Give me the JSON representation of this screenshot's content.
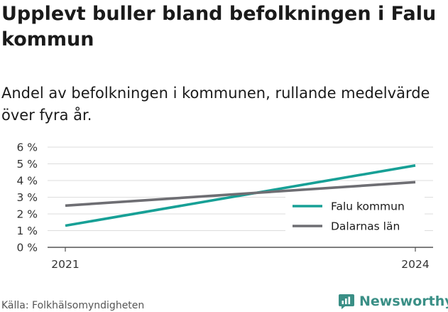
{
  "header": {
    "title": "Upplevt buller bland befolkningen i Falu kommun",
    "subtitle": "Andel av befolkningen i kommunen, rullande medelvärde över fyra år."
  },
  "footer": {
    "source": "Källa: Folkhälsomyndigheten",
    "brand": "Newsworthy"
  },
  "colors": {
    "falu": "#17a096",
    "dalarna": "#6e6e73",
    "grid": "#dddddd",
    "brand": "#3a8f86"
  },
  "icons": {
    "brand_logo": "newsworthy-logo-icon"
  },
  "chart_data": {
    "type": "line",
    "title": "Upplevt buller bland befolkningen i Falu kommun",
    "subtitle": "Andel av befolkningen i kommunen, rullande medelvärde över fyra år.",
    "x": [
      2021,
      2024
    ],
    "x_tick_labels": [
      "2021",
      "2024"
    ],
    "y_ticks": [
      0,
      1,
      2,
      3,
      4,
      5,
      6
    ],
    "y_tick_labels": [
      "0 %",
      "1 %",
      "2 %",
      "3 %",
      "4 %",
      "5 %",
      "6 %"
    ],
    "ylim": [
      0,
      6
    ],
    "xlabel": "",
    "ylabel": "",
    "grid": true,
    "legend_position": "right",
    "series": [
      {
        "name": "Falu kommun",
        "values": [
          1.3,
          4.9
        ],
        "color": "#17a096"
      },
      {
        "name": "Dalarnas län",
        "values": [
          2.5,
          3.9
        ],
        "color": "#6e6e73"
      }
    ]
  }
}
